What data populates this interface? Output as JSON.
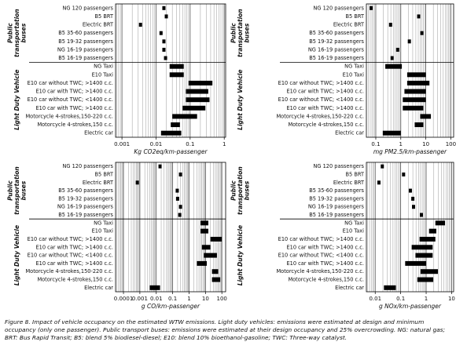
{
  "chart_data": [
    {
      "type": "range",
      "xlabel": "Kg CO2eq/km-passenger",
      "xscale": "log",
      "grid": true,
      "color": "#000000",
      "groups": [
        [
          "Public",
          "transportation",
          "buses"
        ],
        [
          "Light Duty Vehicle"
        ]
      ],
      "categories": [
        "NG 120 passengers",
        "B5 BRT",
        "Electric BRT",
        "B5 35-60 passengers",
        "B5 19-32 passengers",
        "NG 16-19 passengers",
        "B5 16-19 passengers",
        "NG Taxi",
        "E10 Taxi",
        "E10 car without TWC; >1400 c.c.",
        "E10 car with TWC; >1400 c.c.",
        "E10 car without TWC; <1400 c.c.",
        "E10 car with TWC; >1400 c.c.",
        "Motorcycle 4-strokes,150-220 c.c.",
        "Motorcycle 4-strokes,150 c.c.",
        "Electric car"
      ],
      "values": [
        0.017,
        0.02,
        0.0035,
        0.014,
        0.017,
        0.017,
        0.019,
        [
          0.025,
          0.065
        ],
        [
          0.025,
          0.065
        ],
        [
          0.09,
          0.45
        ],
        [
          0.075,
          0.34
        ],
        [
          0.075,
          0.37
        ],
        [
          0.06,
          0.28
        ],
        [
          0.03,
          0.16
        ],
        [
          0.027,
          0.05
        ],
        [
          0.014,
          0.055
        ]
      ],
      "xlim": [
        0.00065,
        1.1
      ],
      "xticks": [
        0.001,
        0.01,
        0.1,
        1
      ]
    },
    {
      "type": "range",
      "xlabel": "mg PM2.5/km-passenger",
      "xscale": "log",
      "grid": true,
      "color": "#000000",
      "groups": [
        [
          "Public",
          "transportation",
          "buses"
        ],
        [
          "Light Duty Vehicle"
        ]
      ],
      "categories": [
        "NG 120 passengers",
        "B5 BRT",
        "Electric BRT",
        "B5 35-60 passengers",
        "B5 19-32 passengers",
        "NG 16-19 passengers",
        "B5 16-19 passengers",
        "NG Taxi",
        "E10 Taxi",
        "E10 car without TWC; >1400 c.c.",
        "E10 car with TWC; >1400 c.c.",
        "E10 car without TWC; <1400 c.c.",
        "E10 car with TWC; >1400 c.c.",
        "Motorcycle 4-strokes,150-220 c.c.",
        "Motorcycle 4-strokes,150 c.c.",
        "Electric car"
      ],
      "values": [
        0.065,
        5.2,
        0.39,
        7,
        2.2,
        0.75,
        0.45,
        [
          0.24,
          1.1
        ],
        [
          1.8,
          10
        ],
        [
          1.8,
          14
        ],
        [
          1.4,
          10
        ],
        [
          1.2,
          10
        ],
        [
          1.2,
          8
        ],
        [
          6,
          16
        ],
        [
          3.6,
          8
        ],
        [
          0.19,
          1
        ]
      ],
      "xlim": [
        0.042,
        130
      ],
      "xticks": [
        0.1,
        1,
        10,
        100
      ]
    },
    {
      "type": "range",
      "xlabel": "g CO/km-passenger",
      "xscale": "log",
      "grid": true,
      "color": "#000000",
      "groups": [
        [
          "Public",
          "transportation",
          "buses"
        ],
        [
          "Light Duty Vehicle"
        ]
      ],
      "categories": [
        "NG 120 passengers",
        "B5 BRT",
        "Electric BRT",
        "B5 35-60 passengers",
        "B5 19-32 passengers",
        "NG 16-19 passengers",
        "B5 16-19 passengers",
        "NG Taxi",
        "E10 Taxi",
        "E10 car without TWC; >1400 c.c.",
        "E10 car with TWC; >1400 c.c.",
        "E10 car without TWC; <1400 c.c.",
        "E10 car with TWC; >1400 c.c.",
        "Motorcycle 4-strokes,150-220 c.c.",
        "Motorcycle 4-strokes,150 c.c.",
        "Electric car"
      ],
      "values": [
        0.017,
        0.3,
        0.0007,
        0.19,
        0.2,
        0.3,
        0.27,
        [
          5,
          15
        ],
        [
          5,
          15
        ],
        [
          20,
          100
        ],
        [
          6,
          20
        ],
        [
          8,
          50
        ],
        [
          3,
          12
        ],
        [
          25,
          60
        ],
        [
          25,
          80
        ],
        [
          0.004,
          0.017
        ]
      ],
      "xlim": [
        3.3e-05,
        170
      ],
      "xticks": [
        0.0001,
        0.001,
        0.01,
        0.1,
        1,
        10,
        100
      ]
    },
    {
      "type": "range",
      "xlabel": "g NOx/km-passenger",
      "xscale": "log",
      "grid": true,
      "color": "#000000",
      "groups": [
        [
          "Public",
          "transportation",
          "buses"
        ],
        [
          "Light Duty Vehicle"
        ]
      ],
      "categories": [
        "NG 120 passengers",
        "B5 BRT",
        "Electric BRT",
        "B5 35-60 passengers",
        "B5 19-32 passengers",
        "NG 16-19 passengers",
        "B5 16-19 passengers",
        "NG Taxi",
        "E10 Taxi",
        "E10 car without TWC; >1400 c.c.",
        "E10 car with TWC; >1400 c.c.",
        "E10 car without TWC; <1400 c.c.",
        "E10 car with TWC; >1400 c.c.",
        "Motorcycle 4-strokes,150-220 c.c.",
        "Motorcycle 4-strokes,150 c.c.",
        "Electric car"
      ],
      "values": [
        0.019,
        0.13,
        0.014,
        0.24,
        0.3,
        0.32,
        0.65,
        [
          2.3,
          5.5
        ],
        [
          1.3,
          2.5
        ],
        [
          0.55,
          2.3
        ],
        [
          0.27,
          1.8
        ],
        [
          0.38,
          1.8
        ],
        [
          0.15,
          1
        ],
        [
          0.6,
          2.9
        ],
        [
          0.45,
          1.9
        ],
        [
          0.022,
          0.065
        ]
      ],
      "xlim": [
        0.0045,
        12
      ],
      "xticks": [
        0.01,
        0.1,
        1,
        10
      ]
    }
  ],
  "caption": "Figure 8. Impact of vehicle occupancy on the estimated WTW emissions. Light duty vehicles: emissions were estimated at design and minimum occupancy (only one passenger). Public transport buses: emissions were estimated at their design occupancy and 25% overcrowding. NG: natural gas; BRT: Bus Rapid Transit; B5: blend 5% biodiesel-diesel; E10: blend 10% bioethanol-gasoline; TWC: Three-way catalyst."
}
